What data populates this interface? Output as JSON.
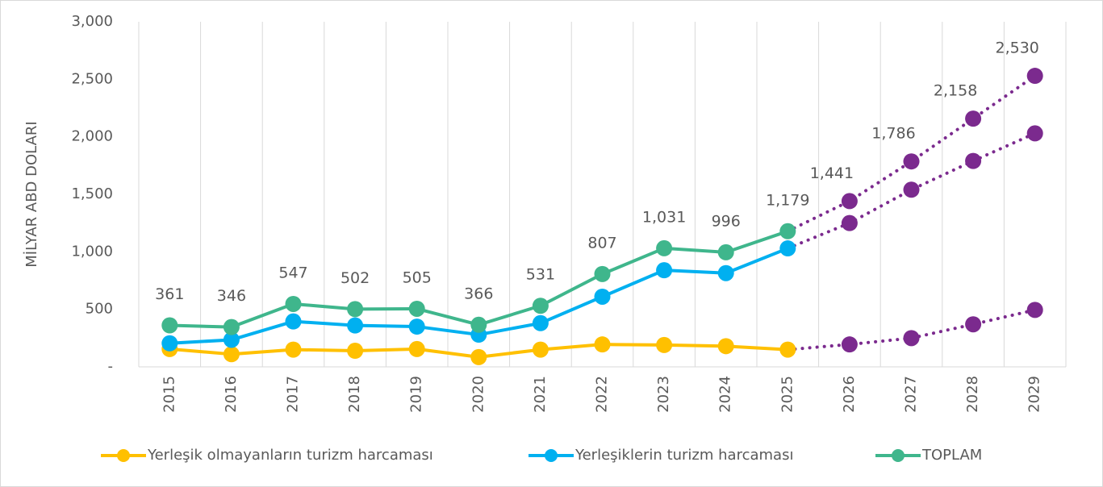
{
  "chart_data": {
    "type": "line",
    "y_axis_label": "MİLYAR ABD DOLARI",
    "categories": [
      "2015",
      "2016",
      "2017",
      "2018",
      "2019",
      "2020",
      "2021",
      "2022",
      "2023",
      "2024",
      "2025",
      "2026",
      "2027",
      "2028",
      "2029"
    ],
    "ylim": [
      0,
      3000
    ],
    "yticks": [
      {
        "value": 0,
        "label": "-"
      },
      500,
      {
        "value": 1000,
        "label": "1,000"
      },
      {
        "value": 1500,
        "label": "1,500"
      },
      {
        "value": 2000,
        "label": "2,000"
      },
      {
        "value": 2500,
        "label": "2,500"
      },
      {
        "value": 3000,
        "label": "3,000"
      }
    ],
    "grid": "x",
    "forecast_color": "#7b2a8e",
    "series": [
      {
        "name": "Yerleşik olmayanların turizm harcaması",
        "color": "#ffc000",
        "values": [
          155,
          110,
          150,
          140,
          155,
          85,
          150,
          195,
          190,
          180,
          150,
          null,
          null,
          null,
          null
        ],
        "forecast_values": [
          null,
          null,
          null,
          null,
          null,
          null,
          null,
          null,
          null,
          null,
          null,
          195,
          250,
          370,
          495
        ]
      },
      {
        "name": "Yerleşiklerin turizm harcaması",
        "color": "#00b0f0",
        "values": [
          205,
          235,
          395,
          360,
          350,
          280,
          380,
          610,
          840,
          815,
          1030,
          null,
          null,
          null,
          null
        ],
        "forecast_values": [
          null,
          null,
          null,
          null,
          null,
          null,
          null,
          null,
          null,
          null,
          null,
          1250,
          1540,
          1790,
          2030
        ]
      },
      {
        "name": "TOPLAM",
        "color": "#3fb68c",
        "values": [
          361,
          346,
          547,
          502,
          505,
          366,
          531,
          807,
          1031,
          996,
          1179,
          null,
          null,
          null,
          null
        ],
        "value_labels": [
          "361",
          "346",
          "547",
          "502",
          "505",
          "366",
          "531",
          "807",
          "1,031",
          "996",
          "1,179",
          null,
          null,
          null,
          null
        ],
        "forecast_values": [
          null,
          null,
          null,
          null,
          null,
          null,
          null,
          null,
          null,
          null,
          null,
          1441,
          1786,
          2158,
          2530
        ],
        "forecast_value_labels": [
          null,
          null,
          null,
          null,
          null,
          null,
          null,
          null,
          null,
          null,
          null,
          "1,441",
          "1,786",
          "2,158",
          "2,530"
        ]
      }
    ]
  }
}
